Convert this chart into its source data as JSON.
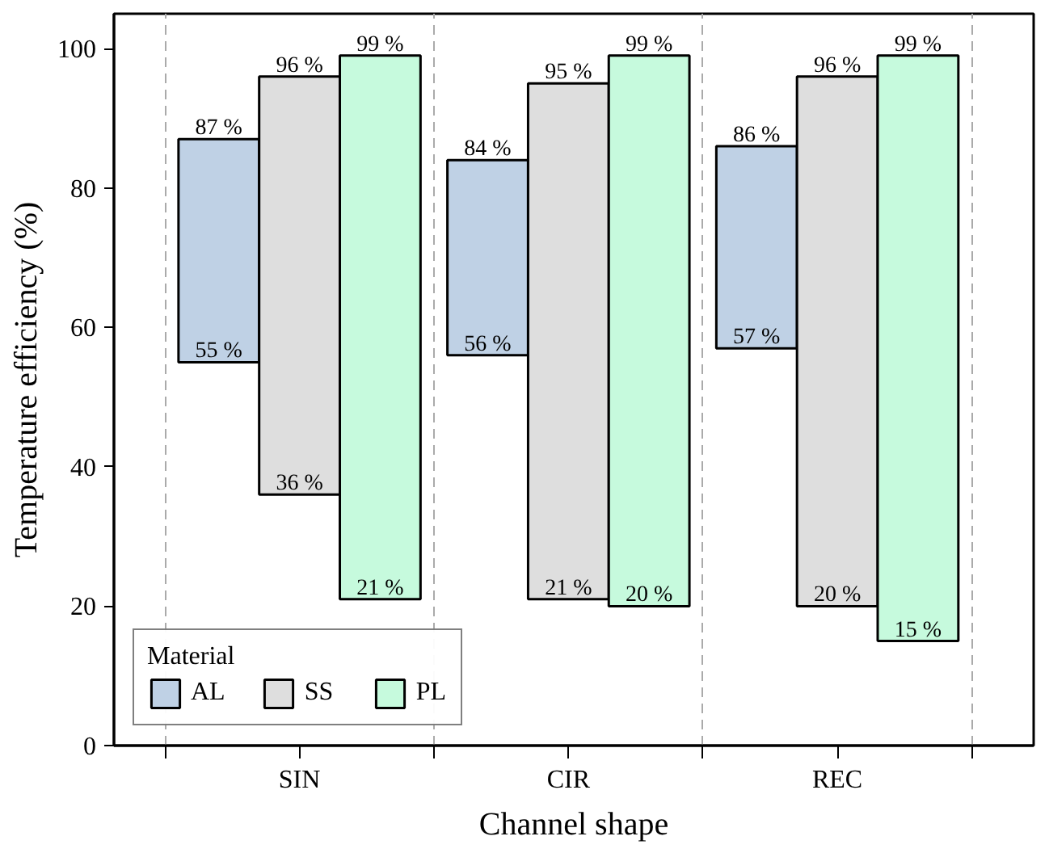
{
  "chart_data": {
    "type": "bar",
    "xlabel": "Channel shape",
    "ylabel": "Temperature efficiency (%)",
    "legend_title": "Material",
    "legend": "bottom left",
    "grid": "x",
    "categories": [
      "SIN",
      "CIR",
      "REC"
    ],
    "ylim": [
      0,
      105
    ],
    "yticks": [
      0,
      20,
      40,
      60,
      80,
      100
    ],
    "series": [
      {
        "name": "AL",
        "color": "#bfd1e5",
        "base": [
          55,
          56,
          57
        ],
        "values": [
          32,
          28,
          29
        ],
        "value_labels": [
          "87 %",
          "84 %",
          "86 %"
        ]
      },
      {
        "name": "SS",
        "color": "#dedede",
        "base": [
          36,
          21,
          20
        ],
        "values": [
          60,
          74,
          76
        ],
        "value_labels": [
          "96 %",
          "95 %",
          "96 %"
        ]
      },
      {
        "name": "PL",
        "color": "#c6fadd",
        "base": [
          21,
          20,
          15
        ],
        "values": [
          78,
          79,
          84
        ],
        "value_labels": [
          "99 %",
          "99 %",
          "99 %"
        ]
      }
    ],
    "annotations": [
      "55 %",
      "36 %",
      "21 %",
      "56 %",
      "21 %",
      "20 %",
      "57 %",
      "20 %",
      "15 %"
    ]
  }
}
